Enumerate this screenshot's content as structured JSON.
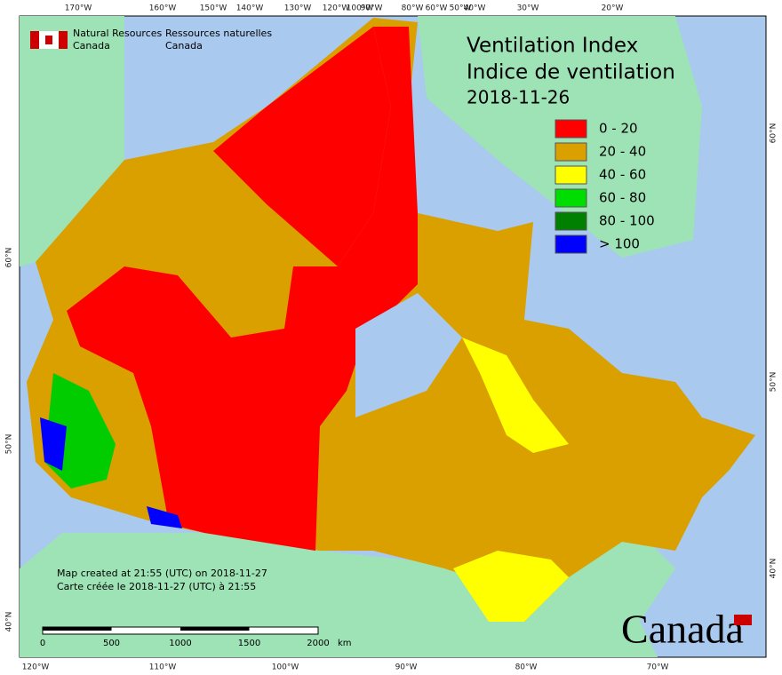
{
  "header": {
    "agency_en": [
      "Natural Resources",
      "Canada"
    ],
    "agency_fr": [
      "Ressources naturelles",
      "Canada"
    ]
  },
  "title": [
    "Ventilation Index",
    "Indice de ventilation"
  ],
  "date": "2018-11-26",
  "legend": [
    {
      "label": "0 - 20",
      "color": "#ff0000"
    },
    {
      "label": "20 - 40",
      "color": "#daa000"
    },
    {
      "label": "40 - 60",
      "color": "#ffff00"
    },
    {
      "label": "60 - 80",
      "color": "#00dd00"
    },
    {
      "label": "80 - 100",
      "color": "#008000"
    },
    {
      "label": "> 100",
      "color": "#0000ff"
    }
  ],
  "graticule": {
    "top": [
      "170°W",
      "160°W",
      "150°W",
      "140°W",
      "130°W",
      "120°W",
      "100°W",
      "90°W",
      "80°W",
      "60°W",
      "50°W",
      "40°W",
      "30°W",
      "20°W"
    ],
    "bottom": [
      "120°W",
      "110°W",
      "100°W",
      "90°W",
      "80°W",
      "70°W"
    ],
    "left": [
      "60°N",
      "50°N",
      "40°N"
    ],
    "right": [
      "60°N",
      "50°N",
      "40°N"
    ]
  },
  "footer": [
    "Map created at 21:55 (UTC) on 2018-11-27",
    "Carte créée le 2018-11-27 (UTC) à 21:55"
  ],
  "scale_bar": {
    "ticks": [
      "0",
      "500",
      "1000",
      "1500",
      "2000"
    ],
    "unit": "km"
  },
  "wordmark": "Canada"
}
